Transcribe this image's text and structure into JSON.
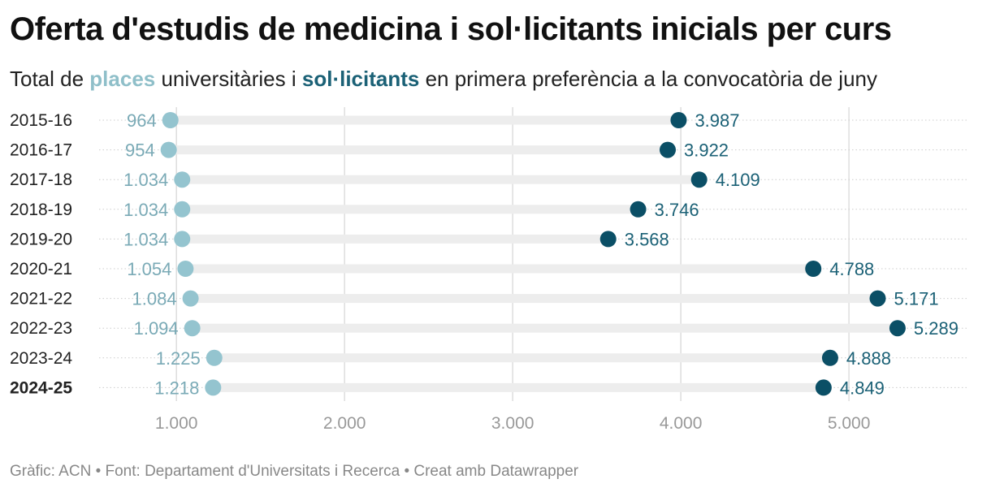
{
  "header": {
    "title": "Oferta d'estudis de medicina i sol·licitants inicials per curs",
    "subtitle_prefix": "Total de ",
    "subtitle_places": "places",
    "subtitle_middle": " universitàries i ",
    "subtitle_solic": "sol·licitants",
    "subtitle_suffix": " en primera preferència a la convocatòria de juny"
  },
  "footer": {
    "credit": "Gràfic: ACN • Font: Departament d'Universitats i Recerca • Creat amb Datawrapper"
  },
  "colors": {
    "places": "#94c4cf",
    "places_label": "#7aaab6",
    "solicitants": "#0b4f66",
    "solicitants_label": "#1b6176",
    "track": "#ededed",
    "grid": "#dddddd"
  },
  "chart_data": {
    "type": "dot-range",
    "categories": [
      "2015-16",
      "2016-17",
      "2017-18",
      "2018-19",
      "2019-20",
      "2020-21",
      "2021-22",
      "2022-23",
      "2023-24",
      "2024-25"
    ],
    "highlighted_category": "2024-25",
    "series": [
      {
        "name": "places",
        "values": [
          964,
          954,
          1034,
          1034,
          1034,
          1054,
          1084,
          1094,
          1225,
          1218
        ],
        "labels": [
          "964",
          "954",
          "1.034",
          "1.034",
          "1.034",
          "1.054",
          "1.084",
          "1.094",
          "1.225",
          "1.218"
        ]
      },
      {
        "name": "sol·licitants",
        "values": [
          3987,
          3922,
          4109,
          3746,
          3568,
          4788,
          5171,
          5289,
          4888,
          4849
        ],
        "labels": [
          "3.987",
          "3.922",
          "4.109",
          "3.746",
          "3.568",
          "4.788",
          "5.171",
          "5.289",
          "4.888",
          "4.849"
        ]
      }
    ],
    "x_ticks": [
      1000,
      2000,
      3000,
      4000,
      5000
    ],
    "x_tick_labels": [
      "1.000",
      "2.000",
      "3.000",
      "4.000",
      "5.000"
    ],
    "xlim": [
      540,
      5700
    ],
    "grid": true
  }
}
